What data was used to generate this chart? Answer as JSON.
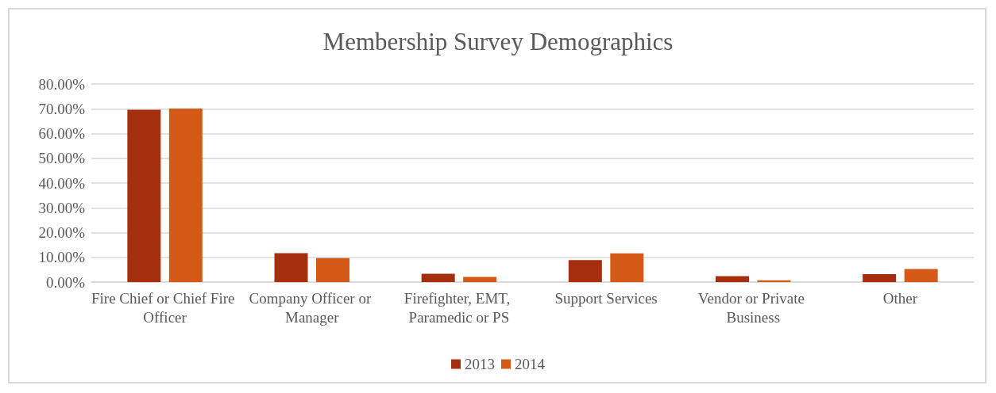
{
  "chart_data": {
    "type": "bar",
    "title": "Membership Survey Demographics",
    "categories": [
      "Fire Chief or Chief Fire Officer",
      "Company Officer or Manager",
      "Firefighter, EMT, Paramedic or PS",
      "Support Services",
      "Vendor or Private Business",
      "Other"
    ],
    "series": [
      {
        "name": "2013",
        "color": "#a32f0f",
        "values": [
          69.6,
          11.7,
          3.4,
          8.9,
          2.4,
          3.2
        ]
      },
      {
        "name": "2014",
        "color": "#d55a17",
        "values": [
          70.1,
          9.7,
          2.1,
          11.6,
          0.7,
          5.3
        ]
      }
    ],
    "ylim": [
      0,
      80
    ],
    "yticks": [
      {
        "value": 0,
        "label": "0.00%"
      },
      {
        "value": 10,
        "label": "10.00%"
      },
      {
        "value": 20,
        "label": "20.00%"
      },
      {
        "value": 30,
        "label": "30.00%"
      },
      {
        "value": 40,
        "label": "40.00%"
      },
      {
        "value": 50,
        "label": "50.00%"
      },
      {
        "value": 60,
        "label": "60.00%"
      },
      {
        "value": 70,
        "label": "70.00%"
      },
      {
        "value": 80,
        "label": "80.00%"
      }
    ],
    "grid": "y",
    "legend": "bottom"
  }
}
